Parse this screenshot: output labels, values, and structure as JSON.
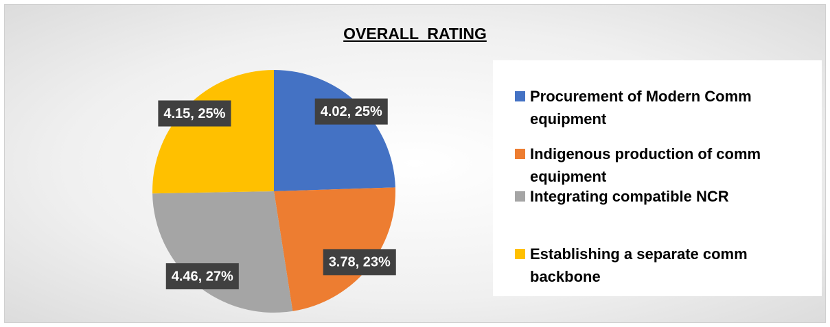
{
  "chart_data": {
    "type": "pie",
    "title": "OVERALL  RATING",
    "categories": [
      "Procurement of Modern Comm equipment",
      "Indigenous production of comm equipment",
      "Integrating compatible NCR",
      "Establishing a separate comm backbone"
    ],
    "values": [
      4.02,
      3.78,
      4.46,
      4.15
    ],
    "value_labels": [
      "4.02, 25%",
      "3.78, 23%",
      "4.46, 27%",
      "4.15, 25%"
    ],
    "colors": [
      "#4472c4",
      "#ed7d31",
      "#a5a5a5",
      "#ffc000"
    ],
    "legend": "right"
  }
}
